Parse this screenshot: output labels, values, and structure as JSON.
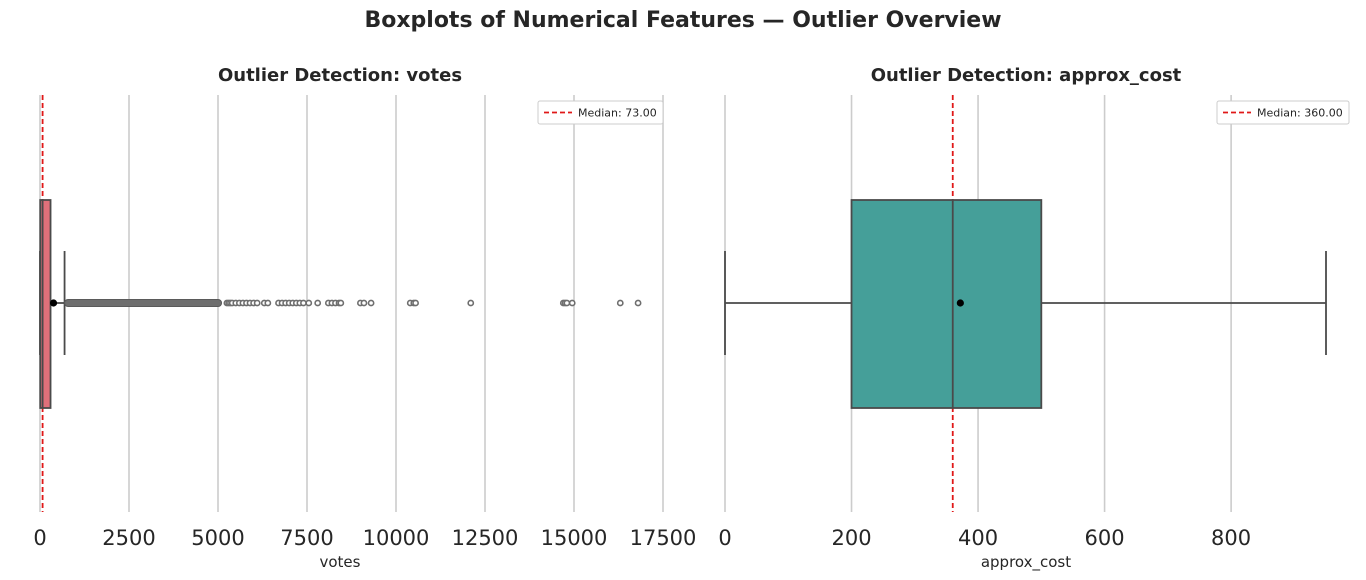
{
  "figure": {
    "suptitle": "Boxplots of Numerical Features — Outlier Overview"
  },
  "chart_data": [
    {
      "type": "boxplot",
      "title": "Outlier Detection: votes",
      "xlabel": "votes",
      "ylabel": "",
      "xlim": [
        0,
        17500
      ],
      "xticks": [
        0,
        2500,
        5000,
        7500,
        10000,
        12500,
        15000,
        17500
      ],
      "xtick_labels": [
        "0",
        "2500",
        "5000",
        "7500",
        "10000",
        "12500",
        "15000",
        "17500"
      ],
      "grid": "vertical",
      "box_color": "#e0707a",
      "stats": {
        "whisker_low": 0,
        "q1": 7,
        "median": 73,
        "q3": 296,
        "whisker_high": 690,
        "mean": 380
      },
      "outliers": [
        5250,
        5300,
        5350,
        5400,
        5500,
        5600,
        5700,
        5800,
        5900,
        6000,
        6100,
        6300,
        6400,
        6700,
        6800,
        6900,
        7000,
        7100,
        7200,
        7300,
        7400,
        7550,
        7800,
        8100,
        8200,
        8300,
        8400,
        8450,
        9000,
        9100,
        9300,
        10400,
        10500,
        10550,
        12100,
        14700,
        14750,
        14800,
        14950,
        16300,
        16800
      ],
      "outlier_band": [
        690,
        5100
      ],
      "median_line": {
        "value": 73,
        "label": "Median: 73.00",
        "color": "#e01818"
      },
      "legend": "upper right"
    },
    {
      "type": "boxplot",
      "title": "Outlier Detection: approx_cost",
      "xlabel": "approx_cost",
      "ylabel": "",
      "xlim": [
        0,
        950
      ],
      "xticks": [
        0,
        200,
        400,
        600,
        800
      ],
      "xtick_labels": [
        "0",
        "200",
        "400",
        "600",
        "800"
      ],
      "grid": "vertical",
      "box_color": "#459f99",
      "stats": {
        "whisker_low": 0,
        "q1": 200,
        "median": 360,
        "q3": 500,
        "whisker_high": 950,
        "mean": 372
      },
      "outliers": [],
      "median_line": {
        "value": 360,
        "label": "Median: 360.00",
        "color": "#e01818"
      },
      "legend": "upper right"
    }
  ]
}
